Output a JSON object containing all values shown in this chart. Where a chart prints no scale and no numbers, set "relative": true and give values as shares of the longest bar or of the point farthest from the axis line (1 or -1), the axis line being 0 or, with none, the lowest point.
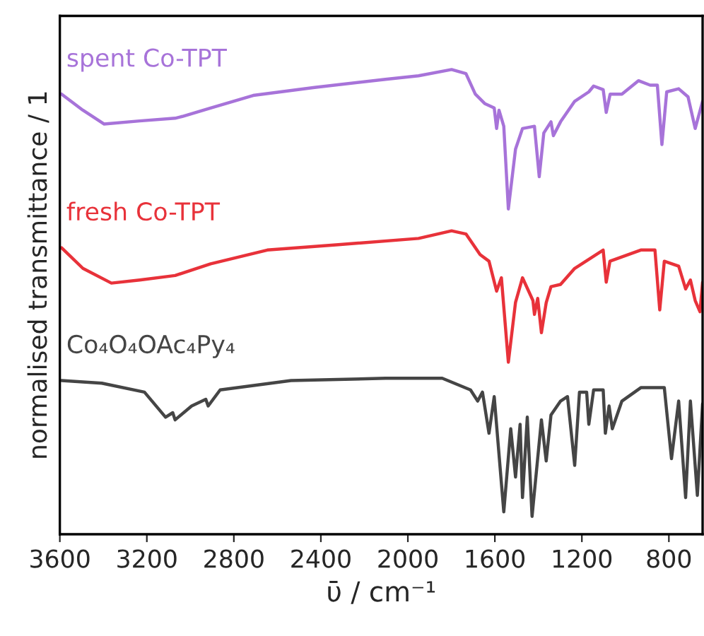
{
  "chart_data": {
    "type": "line",
    "relative": true,
    "xlabel": "ῡ / cm⁻¹",
    "ylabel": "normalised transmittance / 1",
    "xlim": [
      3600,
      645
    ],
    "xticks": [
      3600,
      3200,
      2800,
      2400,
      2000,
      1600,
      1200,
      800
    ],
    "grid": false,
    "legend": false,
    "series": [
      {
        "name": "spent Co-TPT",
        "color": "#a773d9",
        "x": [
          3592,
          3494,
          3396,
          3233,
          3070,
          3037,
          2907,
          2711,
          2429,
          2103,
          1951,
          1799,
          1733,
          1690,
          1647,
          1603,
          1592,
          1581,
          1559,
          1538,
          1505,
          1473,
          1418,
          1396,
          1375,
          1342,
          1331,
          1298,
          1233,
          1168,
          1146,
          1102,
          1088,
          1070,
          1016,
          940,
          886,
          853,
          832,
          810,
          755,
          712,
          679,
          645
        ],
        "values": [
          0.945,
          0.909,
          0.878,
          0.885,
          0.891,
          0.895,
          0.914,
          0.942,
          0.96,
          0.978,
          0.986,
          1.0,
          0.991,
          0.945,
          0.924,
          0.914,
          0.868,
          0.909,
          0.873,
          0.688,
          0.822,
          0.868,
          0.873,
          0.76,
          0.858,
          0.883,
          0.852,
          0.883,
          0.929,
          0.95,
          0.963,
          0.955,
          0.904,
          0.945,
          0.945,
          0.975,
          0.965,
          0.965,
          0.832,
          0.95,
          0.957,
          0.939,
          0.868,
          0.929
        ]
      },
      {
        "name": "fresh Co-TPT",
        "color": "#e8323a",
        "x": [
          3592,
          3494,
          3363,
          3233,
          3070,
          2907,
          2646,
          2320,
          1951,
          1799,
          1733,
          1668,
          1627,
          1592,
          1570,
          1538,
          1505,
          1473,
          1425,
          1418,
          1403,
          1386,
          1364,
          1342,
          1298,
          1233,
          1102,
          1088,
          1071,
          929,
          864,
          842,
          821,
          755,
          723,
          701,
          679,
          657,
          645
        ],
        "values": [
          0.601,
          0.555,
          0.522,
          0.529,
          0.539,
          0.565,
          0.596,
          0.608,
          0.622,
          0.639,
          0.632,
          0.586,
          0.571,
          0.504,
          0.534,
          0.345,
          0.479,
          0.534,
          0.483,
          0.452,
          0.488,
          0.411,
          0.478,
          0.514,
          0.519,
          0.555,
          0.596,
          0.524,
          0.571,
          0.596,
          0.596,
          0.462,
          0.571,
          0.56,
          0.509,
          0.529,
          0.483,
          0.458,
          0.524
        ]
      },
      {
        "name": "Co₄O₄OAc₄Py₄",
        "color": "#454545",
        "x": [
          3592,
          3407,
          3211,
          3114,
          3081,
          3070,
          2994,
          2929,
          2918,
          2863,
          2537,
          2103,
          1842,
          1777,
          1712,
          1679,
          1657,
          1627,
          1603,
          1559,
          1527,
          1505,
          1484,
          1473,
          1451,
          1429,
          1386,
          1364,
          1342,
          1298,
          1266,
          1233,
          1211,
          1178,
          1168,
          1146,
          1102,
          1092,
          1075,
          1060,
          1016,
          929,
          821,
          788,
          755,
          723,
          701,
          669,
          645
        ],
        "values": [
          0.304,
          0.298,
          0.278,
          0.222,
          0.232,
          0.216,
          0.247,
          0.262,
          0.247,
          0.283,
          0.304,
          0.309,
          0.309,
          0.296,
          0.283,
          0.258,
          0.278,
          0.186,
          0.268,
          0.01,
          0.196,
          0.088,
          0.206,
          0.042,
          0.222,
          0.0,
          0.216,
          0.124,
          0.227,
          0.258,
          0.268,
          0.114,
          0.278,
          0.278,
          0.206,
          0.283,
          0.283,
          0.186,
          0.247,
          0.196,
          0.258,
          0.288,
          0.288,
          0.129,
          0.258,
          0.042,
          0.258,
          0.047,
          0.252
        ]
      }
    ]
  }
}
